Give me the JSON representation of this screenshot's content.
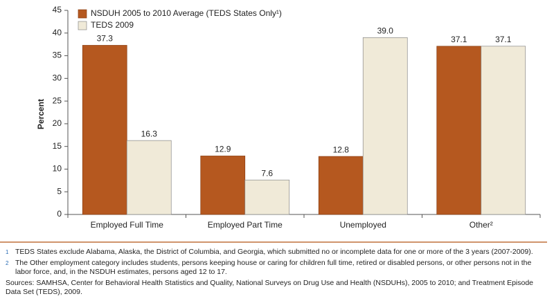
{
  "chart_data": {
    "type": "bar",
    "categories": [
      "Employed Full Time",
      "Employed Part Time",
      "Unemployed",
      "Other²"
    ],
    "series": [
      {
        "name": "NSDUH 2005 to 2010 Average (TEDS States Only¹)",
        "color": "#b5581f",
        "values": [
          37.3,
          12.9,
          12.8,
          37.1
        ]
      },
      {
        "name": "TEDS 2009",
        "color": "#f0ead8",
        "values": [
          16.3,
          7.6,
          39.0,
          37.1
        ],
        "value_labels": [
          "16.3",
          "7.6",
          "39.0",
          "37.1"
        ]
      }
    ],
    "y_label": "Percent",
    "ylim": [
      0,
      45
    ],
    "yticks": [
      0,
      5,
      10,
      15,
      20,
      25,
      30,
      35,
      40,
      45
    ],
    "legend": "top-left"
  },
  "footnotes": [
    {
      "marker": "1",
      "text": "TEDS States exclude Alabama, Alaska, the District of Columbia, and Georgia, which submitted no or incomplete data for one or more of the 3 years (2007-2009)."
    },
    {
      "marker": "2",
      "text": "The Other employment category includes students, persons keeping house or caring for children full time, retired or disabled persons, or other persons not in the labor force, and, in the NSDUH estimates, persons aged 12 to 17."
    }
  ],
  "sources": "Sources: SAMHSA, Center for Behavioral Health Statistics and Quality, National Surveys on Drug Use and Health (NSDUHs), 2005 to 2010; and Treatment Episode Data Set (TEDS), 2009."
}
